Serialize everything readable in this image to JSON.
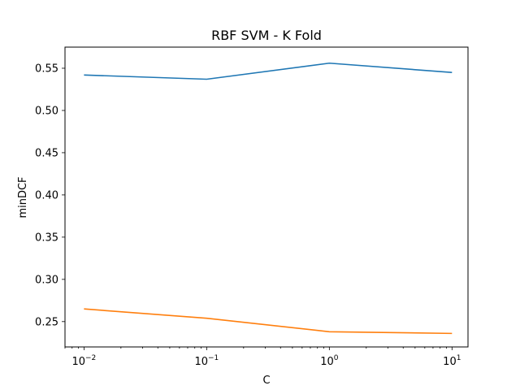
{
  "chart_data": {
    "type": "line",
    "title": "RBF SVM - K Fold",
    "xlabel": "C",
    "ylabel": "minDCF",
    "xscale": "log",
    "x": [
      0.01,
      0.1,
      1,
      10
    ],
    "xlim": [
      0.007,
      13.5
    ],
    "ylim": [
      0.22,
      0.575
    ],
    "xticks": [
      {
        "value": 0.01,
        "base": "10",
        "exp": "−2"
      },
      {
        "value": 0.1,
        "base": "10",
        "exp": "−1"
      },
      {
        "value": 1,
        "base": "10",
        "exp": "0"
      },
      {
        "value": 10,
        "base": "10",
        "exp": "1"
      }
    ],
    "yticks": [
      {
        "value": 0.25,
        "label": "0.25"
      },
      {
        "value": 0.3,
        "label": "0.30"
      },
      {
        "value": 0.35,
        "label": "0.35"
      },
      {
        "value": 0.4,
        "label": "0.40"
      },
      {
        "value": 0.45,
        "label": "0.45"
      },
      {
        "value": 0.5,
        "label": "0.50"
      },
      {
        "value": 0.55,
        "label": "0.55"
      }
    ],
    "grid": false,
    "legend": "none",
    "series": [
      {
        "color": "#1f77b4",
        "values": [
          0.542,
          0.537,
          0.556,
          0.545
        ]
      },
      {
        "color": "#ff7f0e",
        "values": [
          0.265,
          0.254,
          0.238,
          0.236
        ]
      }
    ]
  }
}
